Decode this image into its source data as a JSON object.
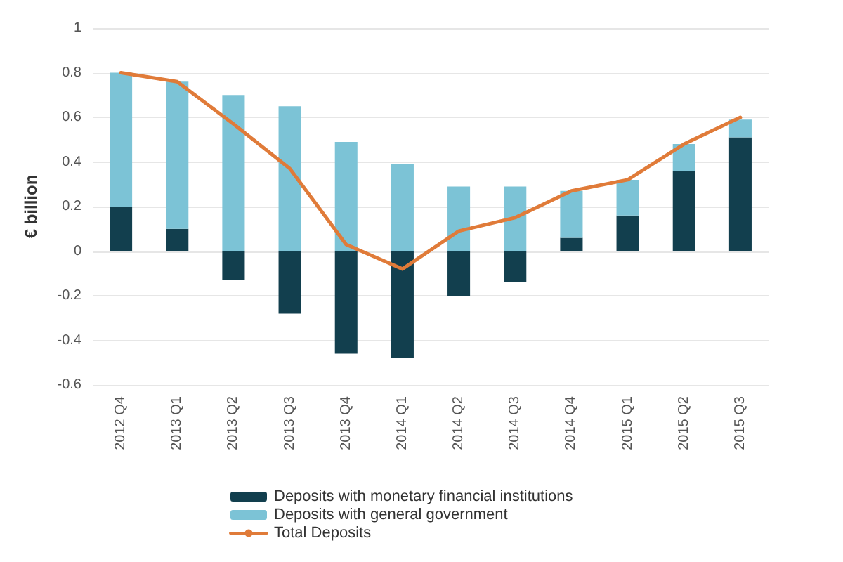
{
  "chart_data": {
    "type": "bar",
    "stacked": true,
    "ylabel": "€ billion",
    "categories": [
      "2012 Q4",
      "2013 Q1",
      "2013 Q2",
      "2013 Q3",
      "2013 Q4",
      "2014 Q1",
      "2014 Q2",
      "2014 Q3",
      "2014 Q4",
      "2015 Q1",
      "2015 Q2",
      "2015 Q3"
    ],
    "series": [
      {
        "name": "Deposits with monetary financial institutions",
        "color": "#123f4e",
        "values": [
          0.2,
          0.1,
          -0.13,
          -0.28,
          -0.46,
          -0.48,
          -0.2,
          -0.14,
          0.06,
          0.16,
          0.36,
          0.51
        ]
      },
      {
        "name": "Deposits with general government",
        "color": "#7cc3d6",
        "values": [
          0.6,
          0.66,
          0.7,
          0.65,
          0.49,
          0.39,
          0.29,
          0.29,
          0.21,
          0.16,
          0.12,
          0.08
        ]
      },
      {
        "name": "Total Deposits",
        "type": "line",
        "color": "#e07b39",
        "values": [
          0.8,
          0.76,
          0.57,
          0.37,
          0.03,
          -0.08,
          0.09,
          0.15,
          0.27,
          0.32,
          0.48,
          0.6
        ]
      }
    ],
    "ylim": [
      -0.6,
      1
    ],
    "yticks": [
      -0.6,
      -0.4,
      -0.2,
      0,
      0.2,
      0.4,
      0.6,
      0.8,
      1
    ],
    "grid": "y",
    "legend": "bottom",
    "marker": "none"
  }
}
